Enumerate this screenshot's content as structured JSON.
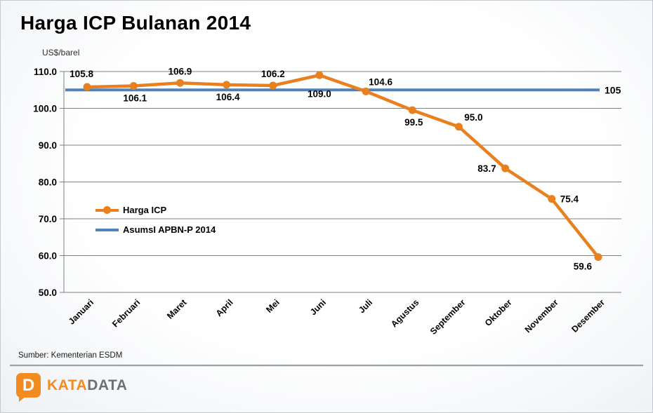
{
  "page": {
    "title": "Harga ICP Bulanan 2014",
    "source_note": "Sumber: Kementerian ESDM",
    "logo": {
      "icon_letter": "D",
      "text_kata": "KATA",
      "text_data": "DATA",
      "color_orange": "#F28B20",
      "color_gray": "#6E6F72"
    }
  },
  "chart_data": {
    "type": "line",
    "title": "Harga ICP Bulanan 2014",
    "unit_label": "US$/barel",
    "categories": [
      "Januari",
      "Februari",
      "Maret",
      "April",
      "Mei",
      "Juni",
      "Juli",
      "Agustus",
      "September",
      "Oktober",
      "November",
      "Desember"
    ],
    "series": [
      {
        "name": "Harga ICP",
        "type": "line-markers",
        "color": "#E8801F",
        "values": [
          105.8,
          106.1,
          106.9,
          106.4,
          106.2,
          109.0,
          104.6,
          99.5,
          95.0,
          83.7,
          75.4,
          59.6
        ],
        "data_label_positions": [
          "above-left",
          "below",
          "above",
          "below",
          "above",
          "below-far",
          "above-right",
          "below",
          "above-right",
          "left",
          "right",
          "below-left"
        ]
      },
      {
        "name": "AsumsI APBN-P 2014",
        "type": "reference-line",
        "color": "#4F81BD",
        "value": 105,
        "end_label": "105"
      }
    ],
    "ylim": [
      50,
      110
    ],
    "ytick_step": 10,
    "yticks": [
      "110.0",
      "100.0",
      "90.0",
      "80.0",
      "70.0",
      "60.0",
      "50.0"
    ],
    "grid": "horizontal-only",
    "grid_color": "#808080",
    "legend_position": "inside-left"
  }
}
